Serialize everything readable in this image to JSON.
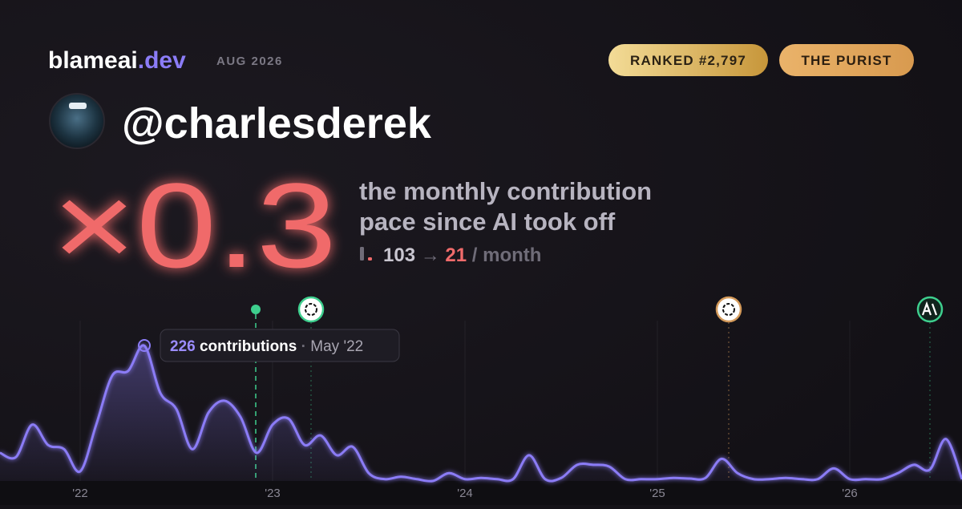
{
  "header": {
    "brand": "blameai",
    "brand_suffix": ".dev",
    "period": "AUG 2026",
    "rank_badge": "RANKED #2,797",
    "persona_badge": "THE PURIST",
    "handle": "@charlesderek"
  },
  "headline": {
    "multiplier": "×0.3",
    "line1": "the monthly contribution",
    "line2": "pace since AI took off",
    "before": "103",
    "arrow": "→",
    "after": "21",
    "unit": "/ month"
  },
  "chart_data": {
    "type": "area",
    "color": "#8b7cf6",
    "categories": [
      null,
      null,
      null,
      null,
      null,
      "'22",
      null,
      null,
      null,
      null,
      null,
      null,
      null,
      null,
      null,
      null,
      null,
      "'23",
      null,
      null,
      null,
      null,
      null,
      null,
      null,
      null,
      null,
      null,
      null,
      "'24",
      null,
      null,
      null,
      null,
      null,
      null,
      null,
      null,
      null,
      null,
      null,
      "'25",
      null,
      null,
      null,
      null,
      null,
      null,
      null,
      null,
      null,
      null,
      null,
      "'26",
      null,
      null,
      null,
      null,
      null,
      null,
      null
    ],
    "values": [
      47,
      40,
      94,
      60,
      53,
      16,
      94,
      176,
      184,
      226,
      147,
      120,
      53,
      114,
      134,
      107,
      47,
      94,
      104,
      60,
      76,
      43,
      57,
      13,
      3,
      7,
      3,
      0,
      13,
      3,
      5,
      3,
      3,
      43,
      3,
      5,
      27,
      27,
      24,
      3,
      3,
      3,
      5,
      4,
      5,
      37,
      13,
      3,
      3,
      5,
      3,
      3,
      21,
      3,
      3,
      3,
      13,
      27,
      19,
      70,
      3
    ],
    "ylim": [
      0,
      300
    ],
    "tooltip": {
      "label": "contributions",
      "separator": "·",
      "date": "May '22"
    }
  }
}
